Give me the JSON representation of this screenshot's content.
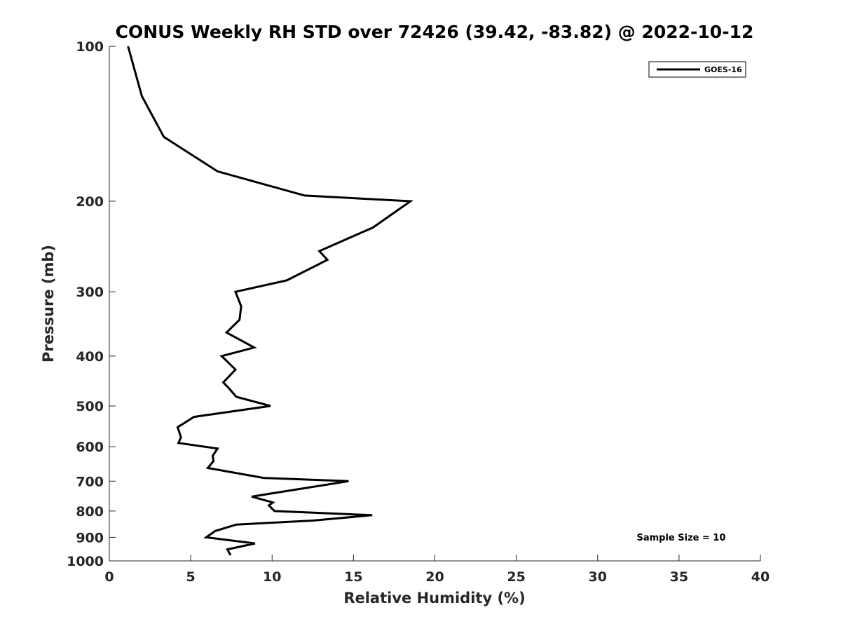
{
  "chart_data": {
    "type": "line",
    "title": "CONUS Weekly RH STD over 72426 (39.42, -83.82) @ 2022-10-12",
    "xlabel": "Relative Humidity (%)",
    "ylabel": "Pressure (mb)",
    "xlim": [
      0,
      40
    ],
    "ylim": [
      100,
      1000
    ],
    "y_scale": "log",
    "y_reversed": true,
    "x_ticks": [
      0,
      5,
      10,
      15,
      20,
      25,
      30,
      35,
      40
    ],
    "y_ticks": [
      100,
      200,
      300,
      400,
      500,
      600,
      700,
      800,
      900,
      1000
    ],
    "grid": false,
    "legend": {
      "position": "top-right",
      "entries": [
        "GOES-16"
      ]
    },
    "annotation": "Sample Size = 10",
    "series": [
      {
        "name": "GOES-16",
        "color": "#000000",
        "points": [
          [
            1.15,
            100
          ],
          [
            2.0,
            125
          ],
          [
            3.35,
            150
          ],
          [
            6.65,
            175
          ],
          [
            12.0,
            195
          ],
          [
            18.5,
            200
          ],
          [
            16.2,
            225
          ],
          [
            12.9,
            250
          ],
          [
            13.4,
            260
          ],
          [
            10.9,
            285
          ],
          [
            7.75,
            300
          ],
          [
            8.1,
            320
          ],
          [
            8.0,
            340
          ],
          [
            7.2,
            360
          ],
          [
            8.9,
            385
          ],
          [
            6.9,
            400
          ],
          [
            7.75,
            425
          ],
          [
            7.0,
            450
          ],
          [
            7.3,
            460
          ],
          [
            7.8,
            480
          ],
          [
            9.9,
            500
          ],
          [
            5.2,
            525
          ],
          [
            4.2,
            550
          ],
          [
            4.4,
            575
          ],
          [
            4.25,
            590
          ],
          [
            6.65,
            605
          ],
          [
            6.35,
            625
          ],
          [
            6.4,
            640
          ],
          [
            6.05,
            660
          ],
          [
            9.5,
            690
          ],
          [
            14.7,
            700
          ],
          [
            8.75,
            750
          ],
          [
            10.05,
            770
          ],
          [
            9.8,
            780
          ],
          [
            10.15,
            800
          ],
          [
            16.15,
            815
          ],
          [
            12.5,
            835
          ],
          [
            7.8,
            850
          ],
          [
            6.5,
            875
          ],
          [
            5.95,
            900
          ],
          [
            8.95,
            925
          ],
          [
            7.25,
            950
          ],
          [
            7.45,
            975
          ]
        ]
      }
    ]
  }
}
